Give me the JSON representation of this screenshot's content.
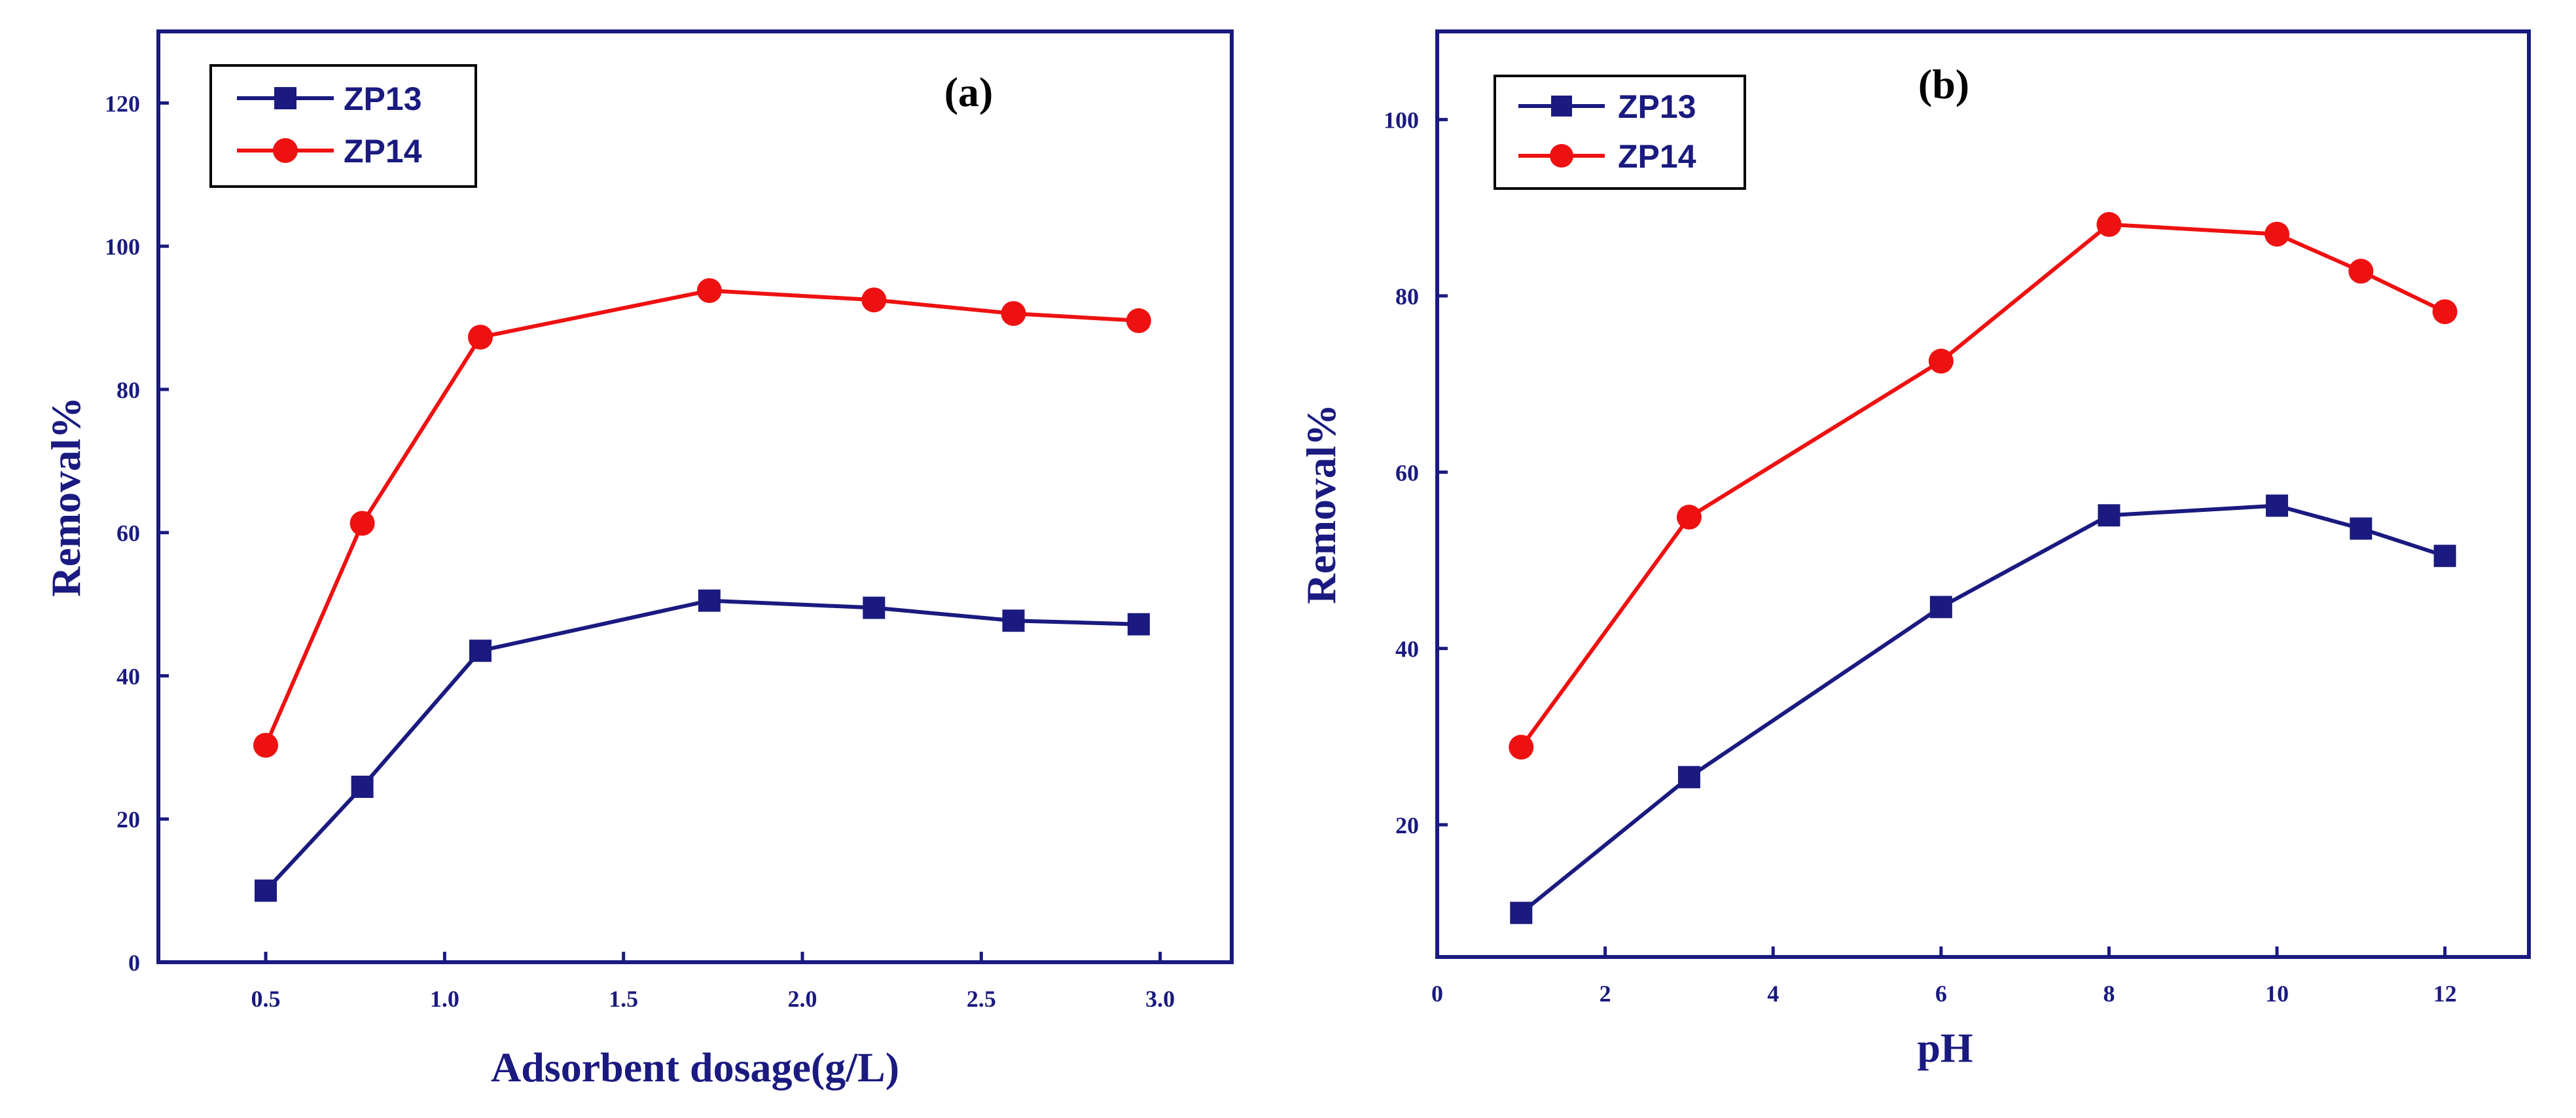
{
  "chart_data": [
    {
      "type": "line",
      "title": "(a)",
      "xlabel": "Adsorbent dosage(g/L)",
      "ylabel": "Removal%",
      "xlim": [
        0.2,
        3.2
      ],
      "ylim": [
        0,
        130
      ],
      "xticks": [
        0.5,
        1.0,
        1.5,
        2.0,
        2.5,
        3.0
      ],
      "xtick_labels": [
        "0.5",
        "1.0",
        "1.5",
        "2.0",
        "2.5",
        "3.0"
      ],
      "yticks": [
        0,
        20,
        40,
        60,
        80,
        100,
        120
      ],
      "ytick_labels": [
        "0",
        "20",
        "40",
        "60",
        "80",
        "100",
        "120"
      ],
      "legend": "top-left",
      "series": [
        {
          "name": "ZP13",
          "color": "#1a1a80",
          "marker": "square",
          "x": [
            0.5,
            0.77,
            1.1,
            1.74,
            2.2,
            2.59,
            2.94
          ],
          "y": [
            10,
            24.5,
            43.5,
            50.5,
            49.5,
            47.7,
            47.2
          ]
        },
        {
          "name": "ZP14",
          "color": "#ee1111",
          "marker": "circle",
          "x": [
            0.5,
            0.77,
            1.1,
            1.74,
            2.2,
            2.59,
            2.94
          ],
          "y": [
            30.3,
            61.3,
            87.3,
            93.8,
            92.5,
            90.6,
            89.6
          ]
        }
      ]
    },
    {
      "type": "line",
      "title": "(b)",
      "xlabel": "pH",
      "ylabel": "Removal%",
      "xlim": [
        0,
        13
      ],
      "ylim": [
        5,
        110
      ],
      "xticks": [
        0,
        2,
        4,
        6,
        8,
        10,
        12
      ],
      "xtick_labels": [
        "0",
        "2",
        "4",
        "6",
        "8",
        "10",
        "12"
      ],
      "yticks": [
        20,
        40,
        60,
        80,
        100
      ],
      "ytick_labels": [
        "20",
        "40",
        "60",
        "80",
        "100"
      ],
      "legend": "top-left",
      "series": [
        {
          "name": "ZP13",
          "color": "#1a1a80",
          "marker": "square",
          "x": [
            1,
            3,
            6,
            8,
            10,
            11,
            12
          ],
          "y": [
            10,
            25.4,
            44.7,
            55.1,
            56.2,
            53.6,
            50.5
          ]
        },
        {
          "name": "ZP14",
          "color": "#ee1111",
          "marker": "circle",
          "x": [
            1,
            3,
            6,
            8,
            10,
            11,
            12
          ],
          "y": [
            28.8,
            54.9,
            72.6,
            88.1,
            87.0,
            82.8,
            78.2
          ]
        }
      ]
    }
  ]
}
